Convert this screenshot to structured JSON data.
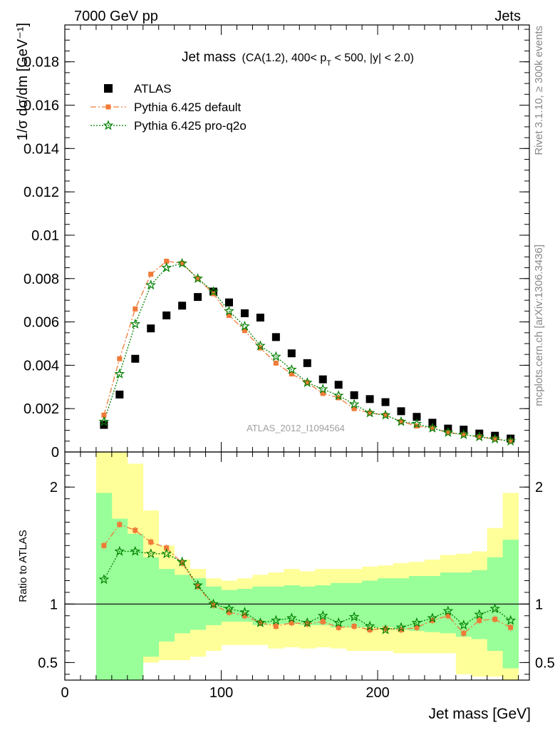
{
  "header": {
    "left": "7000 GeV pp",
    "right": "Jets"
  },
  "side_labels": {
    "rivet": "Rivet 3.1.10, ≥ 300k events",
    "mcplots": "mcplots.cern.ch [arXiv:1306.3436]"
  },
  "chart_data": [
    {
      "type": "scatter",
      "title_main": "Jet mass",
      "title_detail_pre": "(CA(1.2), 400< p",
      "title_detail_sub": "T",
      "title_detail_post": " < 500, |y| < 2.0)",
      "ylabel": "1/σ dσ/dm [GeV⁻¹]",
      "watermark": "ATLAS_2012_I1094564",
      "xlim": [
        0,
        297
      ],
      "ylim": [
        0,
        0.0197
      ],
      "yticks": [
        {
          "v": 0,
          "label": "0"
        },
        {
          "v": 0.002,
          "label": "0.002"
        },
        {
          "v": 0.004,
          "label": "0.004"
        },
        {
          "v": 0.006,
          "label": "0.006"
        },
        {
          "v": 0.008,
          "label": "0.008"
        },
        {
          "v": 0.01,
          "label": "0.01"
        },
        {
          "v": 0.012,
          "label": "0.012"
        },
        {
          "v": 0.014,
          "label": "0.014"
        },
        {
          "v": 0.016,
          "label": "0.016"
        },
        {
          "v": 0.018,
          "label": "0.018"
        }
      ],
      "x": [
        25,
        35,
        45,
        55,
        65,
        75,
        85,
        95,
        105,
        115,
        125,
        135,
        145,
        155,
        165,
        175,
        185,
        195,
        205,
        215,
        225,
        235,
        245,
        255,
        265,
        275,
        285
      ],
      "legend": [
        {
          "name": "ATLAS",
          "color": "#000000",
          "marker": "square"
        },
        {
          "name": "Pythia 6.425 default",
          "color": "#f07a37",
          "marker": "square-dashed"
        },
        {
          "name": "Pythia 6.425 pro-q2o",
          "color": "#008000",
          "marker": "star-dotted"
        }
      ],
      "series": [
        {
          "name": "ATLAS",
          "values": [
            0.00125,
            0.00265,
            0.0043,
            0.0057,
            0.0063,
            0.00675,
            0.00715,
            0.0074,
            0.0069,
            0.0064,
            0.0062,
            0.0053,
            0.00455,
            0.0041,
            0.00335,
            0.0031,
            0.00262,
            0.00244,
            0.0023,
            0.00188,
            0.00162,
            0.00135,
            0.00108,
            0.00103,
            0.00085,
            0.00075,
            0.00062
          ]
        },
        {
          "name": "Pythia 6.425 default",
          "values": [
            0.0017,
            0.0043,
            0.0066,
            0.0082,
            0.0088,
            0.0087,
            0.008,
            0.0073,
            0.0063,
            0.0056,
            0.0048,
            0.0041,
            0.0036,
            0.0032,
            0.0027,
            0.0025,
            0.002,
            0.0018,
            0.0017,
            0.0014,
            0.0012,
            0.0011,
            0.0009,
            0.0008,
            0.0007,
            0.0006,
            0.0005
          ]
        },
        {
          "name": "Pythia 6.425 pro-q2o",
          "values": [
            0.0014,
            0.0036,
            0.0059,
            0.0077,
            0.0085,
            0.0087,
            0.008,
            0.0074,
            0.0065,
            0.0058,
            0.0049,
            0.0044,
            0.0038,
            0.0032,
            0.0029,
            0.0026,
            0.0022,
            0.0018,
            0.0017,
            0.0014,
            0.0013,
            0.0011,
            0.0009,
            0.0008,
            0.0007,
            0.0006,
            0.0005
          ]
        }
      ]
    },
    {
      "type": "scatter",
      "ylabel": "Ratio to ATLAS",
      "xlabel": "Jet mass [GeV]",
      "xlim": [
        0,
        297
      ],
      "ylim": [
        0.35,
        2.3
      ],
      "xticks": [
        {
          "v": 0,
          "label": "0"
        },
        {
          "v": 100,
          "label": "100"
        },
        {
          "v": 200,
          "label": "200"
        }
      ],
      "yticks": [
        {
          "v": 0.5,
          "label": "0.5"
        },
        {
          "v": 1,
          "label": "1"
        },
        {
          "v": 2,
          "label": "2"
        }
      ],
      "bin_edges": [
        20,
        30,
        40,
        50,
        60,
        70,
        80,
        90,
        100,
        110,
        120,
        130,
        140,
        150,
        160,
        170,
        180,
        190,
        200,
        210,
        220,
        230,
        240,
        250,
        260,
        270,
        280,
        290
      ],
      "bands": {
        "green_upper": [
          1.95,
          1.73,
          1.6,
          1.4,
          1.3,
          1.25,
          1.22,
          1.15,
          1.12,
          1.13,
          1.15,
          1.15,
          1.16,
          1.15,
          1.16,
          1.18,
          1.18,
          1.2,
          1.22,
          1.22,
          1.24,
          1.24,
          1.27,
          1.27,
          1.29,
          1.4,
          1.55
        ],
        "green_lower": [
          0.0,
          0.0,
          0.0,
          0.55,
          0.68,
          0.75,
          0.78,
          0.82,
          0.85,
          0.85,
          0.82,
          0.83,
          0.83,
          0.82,
          0.82,
          0.8,
          0.8,
          0.8,
          0.8,
          0.78,
          0.77,
          0.76,
          0.75,
          0.72,
          0.7,
          0.6,
          0.45
        ],
        "yellow_upper": [
          3.0,
          2.5,
          2.2,
          1.8,
          1.5,
          1.38,
          1.3,
          1.22,
          1.2,
          1.22,
          1.25,
          1.27,
          1.3,
          1.28,
          1.3,
          1.3,
          1.3,
          1.32,
          1.33,
          1.35,
          1.36,
          1.38,
          1.42,
          1.43,
          1.45,
          1.65,
          1.95
        ],
        "yellow_lower": [
          0.0,
          0.0,
          0.55,
          0.5,
          0.52,
          0.52,
          0.55,
          0.6,
          0.65,
          0.65,
          0.65,
          0.62,
          0.63,
          0.62,
          0.63,
          0.62,
          0.6,
          0.6,
          0.6,
          0.58,
          0.58,
          0.58,
          0.58,
          0.4,
          0.38,
          0.38,
          0.3
        ]
      },
      "reference": 1,
      "series": [
        {
          "name": "Pythia 6.425 default",
          "values": [
            1.5,
            1.68,
            1.63,
            1.53,
            1.48,
            1.35,
            1.15,
            0.99,
            0.93,
            0.9,
            0.84,
            0.81,
            0.84,
            0.83,
            0.85,
            0.8,
            0.81,
            0.78,
            0.79,
            0.78,
            0.8,
            0.86,
            0.9,
            0.75,
            0.86,
            0.87,
            0.8
          ]
        },
        {
          "name": "Pythia 6.425 pro-q2o",
          "values": [
            1.21,
            1.45,
            1.45,
            1.43,
            1.43,
            1.36,
            1.16,
            1.0,
            0.96,
            0.93,
            0.84,
            0.86,
            0.88,
            0.84,
            0.9,
            0.84,
            0.89,
            0.81,
            0.78,
            0.8,
            0.84,
            0.88,
            0.94,
            0.82,
            0.91,
            0.96,
            0.86
          ]
        }
      ]
    }
  ]
}
